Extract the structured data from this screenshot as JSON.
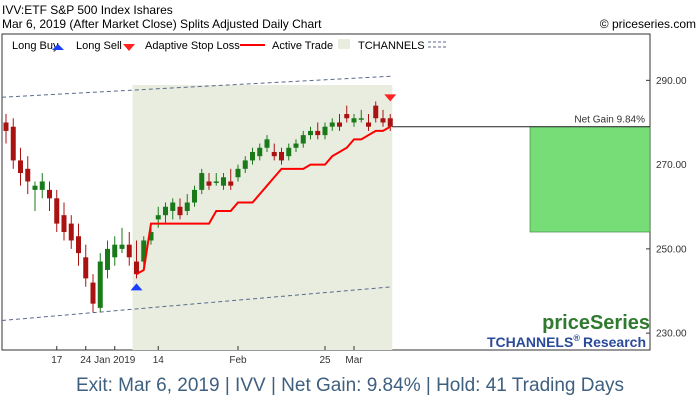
{
  "header": {
    "line1": "IVV:ETF S&P 500 Index Ishares",
    "line2": "Mar 6, 2019 (After Market Close)  Splits Adjusted Daily Chart",
    "copyright": "© priceseries.com"
  },
  "legend": {
    "long_buy": "Long Buy",
    "long_sell": "Long Sell",
    "adaptive_stop": "Adaptive Stop Loss",
    "active_trade": "Active Trade",
    "tchannels": "TCHANNELS"
  },
  "net_gain_label": "Net Gain 9.84%",
  "brand": {
    "price_series": "priceSeries",
    "tchannels": "TCHANNELS",
    "registered": "®",
    "research": "Research"
  },
  "footer": "Exit: Mar 6, 2019 | IVV | Net Gain: 9.84% | Hold: 41 Trading Days",
  "colors": {
    "up_candle": "#1a7a1a",
    "down_candle": "#aa1111",
    "stop_line": "#ff0000",
    "active_trade_bg": "#e9ede0",
    "gain_box": "#77dd77",
    "buy_arrow": "#1a3dff",
    "sell_arrow": "#ff2222",
    "channel_line": "#5a6a8a",
    "footer_text": "#3f5f7f",
    "brand_green": "#2f7a2f",
    "brand_blue": "#2a4a9a"
  },
  "chart_data": {
    "type": "candlestick",
    "yaxis": {
      "ticks": [
        230,
        250,
        270,
        290
      ],
      "tick_labels": [
        "230.00",
        "250.00",
        "270.00",
        "290.00"
      ],
      "range": [
        226,
        301
      ]
    },
    "xaxis": {
      "labels": [
        {
          "index": 7,
          "text": "17"
        },
        {
          "index": 11,
          "text": "24"
        },
        {
          "index": 15,
          "text": "Jan 2019"
        },
        {
          "index": 21,
          "text": "14"
        },
        {
          "index": 32,
          "text": "Feb"
        },
        {
          "index": 44,
          "text": "25"
        },
        {
          "index": 48,
          "text": "Mar"
        }
      ]
    },
    "candles": [
      {
        "o": 280,
        "h": 282,
        "l": 275,
        "c": 278
      },
      {
        "o": 279,
        "h": 281,
        "l": 269,
        "c": 271
      },
      {
        "o": 271,
        "h": 274,
        "l": 265,
        "c": 268
      },
      {
        "o": 269,
        "h": 272,
        "l": 263,
        "c": 266
      },
      {
        "o": 264,
        "h": 266,
        "l": 259,
        "c": 265
      },
      {
        "o": 264,
        "h": 268,
        "l": 262,
        "c": 266
      },
      {
        "o": 264,
        "h": 266,
        "l": 259,
        "c": 262
      },
      {
        "o": 262,
        "h": 264,
        "l": 254,
        "c": 256
      },
      {
        "o": 258,
        "h": 261,
        "l": 252,
        "c": 254
      },
      {
        "o": 256,
        "h": 258,
        "l": 250,
        "c": 252
      },
      {
        "o": 253,
        "h": 256,
        "l": 246,
        "c": 249
      },
      {
        "o": 248,
        "h": 251,
        "l": 241,
        "c": 243
      },
      {
        "o": 242,
        "h": 244,
        "l": 235,
        "c": 237
      },
      {
        "o": 236,
        "h": 249,
        "l": 235,
        "c": 247
      },
      {
        "o": 245,
        "h": 252,
        "l": 243,
        "c": 250
      },
      {
        "o": 248,
        "h": 253,
        "l": 246,
        "c": 251
      },
      {
        "o": 250,
        "h": 255,
        "l": 249,
        "c": 251
      },
      {
        "o": 251,
        "h": 254,
        "l": 246,
        "c": 248
      },
      {
        "o": 247,
        "h": 252,
        "l": 243,
        "c": 244
      },
      {
        "o": 247,
        "h": 253,
        "l": 245,
        "c": 252
      },
      {
        "o": 252,
        "h": 256,
        "l": 251,
        "c": 254
      },
      {
        "o": 257,
        "h": 260,
        "l": 255,
        "c": 258
      },
      {
        "o": 258,
        "h": 261,
        "l": 256,
        "c": 260
      },
      {
        "o": 259,
        "h": 262,
        "l": 257,
        "c": 261
      },
      {
        "o": 260,
        "h": 262,
        "l": 257,
        "c": 258
      },
      {
        "o": 259,
        "h": 263,
        "l": 258,
        "c": 261
      },
      {
        "o": 261,
        "h": 265,
        "l": 260,
        "c": 264
      },
      {
        "o": 264,
        "h": 269,
        "l": 263,
        "c": 268
      },
      {
        "o": 266,
        "h": 268,
        "l": 264,
        "c": 265
      },
      {
        "o": 266,
        "h": 268,
        "l": 265,
        "c": 266
      },
      {
        "o": 265,
        "h": 268,
        "l": 264,
        "c": 267
      },
      {
        "o": 266,
        "h": 269,
        "l": 264,
        "c": 265
      },
      {
        "o": 267,
        "h": 270,
        "l": 266,
        "c": 269
      },
      {
        "o": 269,
        "h": 272,
        "l": 268,
        "c": 271
      },
      {
        "o": 271,
        "h": 274,
        "l": 270,
        "c": 273
      },
      {
        "o": 272,
        "h": 275,
        "l": 271,
        "c": 274
      },
      {
        "o": 274,
        "h": 277,
        "l": 273,
        "c": 276
      },
      {
        "o": 273,
        "h": 275,
        "l": 271,
        "c": 272
      },
      {
        "o": 273,
        "h": 274,
        "l": 270,
        "c": 271
      },
      {
        "o": 272,
        "h": 275,
        "l": 271,
        "c": 274
      },
      {
        "o": 274,
        "h": 276,
        "l": 273,
        "c": 275
      },
      {
        "o": 275,
        "h": 278,
        "l": 274,
        "c": 277
      },
      {
        "o": 277,
        "h": 279,
        "l": 276,
        "c": 278
      },
      {
        "o": 278,
        "h": 280,
        "l": 276,
        "c": 277
      },
      {
        "o": 277,
        "h": 280,
        "l": 276,
        "c": 279
      },
      {
        "o": 279,
        "h": 281,
        "l": 278,
        "c": 280
      },
      {
        "o": 280,
        "h": 282,
        "l": 278,
        "c": 279
      },
      {
        "o": 282,
        "h": 284,
        "l": 280,
        "c": 281
      },
      {
        "o": 280,
        "h": 282,
        "l": 279,
        "c": 281
      },
      {
        "o": 281,
        "h": 283,
        "l": 280,
        "c": 281
      },
      {
        "o": 280,
        "h": 282,
        "l": 278,
        "c": 279
      },
      {
        "o": 284,
        "h": 285,
        "l": 280,
        "c": 281
      },
      {
        "o": 281,
        "h": 283,
        "l": 279,
        "c": 280
      },
      {
        "o": 281,
        "h": 282,
        "l": 278,
        "c": 279
      }
    ],
    "active_trade": {
      "start_index": 18,
      "end_index": 53
    },
    "stop_loss": {
      "start_index": 18,
      "values": [
        244,
        245,
        256,
        256,
        256,
        256,
        256,
        256,
        256,
        256,
        256,
        259,
        259,
        259,
        261,
        261,
        261,
        263,
        265,
        267,
        269,
        269,
        269,
        269,
        270,
        270,
        270,
        272,
        273,
        274,
        276,
        276,
        277,
        278,
        278,
        279
      ]
    },
    "buy_signal": {
      "index": 18,
      "price": 243
    },
    "sell_signal": {
      "index": 53,
      "price": 285
    },
    "channel_upper": {
      "start": 286,
      "end": 291
    },
    "channel_lower": {
      "start": 233,
      "end": 241
    },
    "net_gain_box": {
      "low": 254,
      "high": 279
    }
  }
}
